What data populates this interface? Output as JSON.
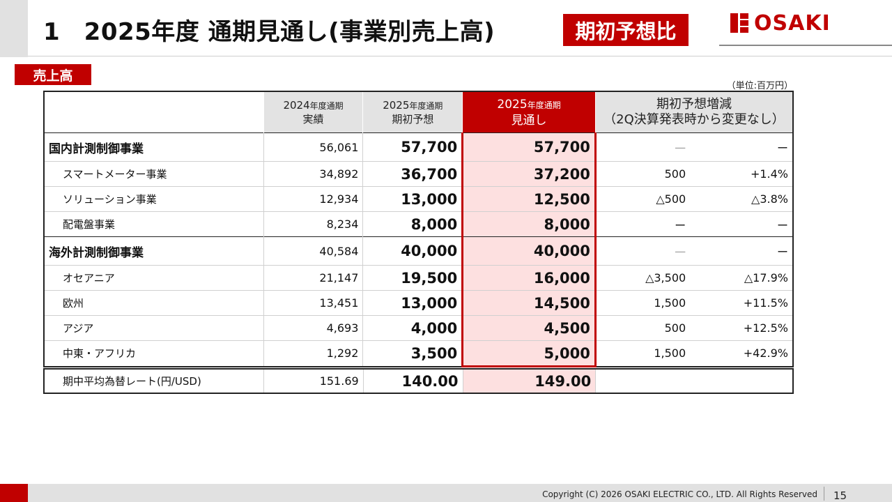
{
  "header": {
    "title": "1　2025年度 通期見通し(事業別売上高)",
    "badge": "期初予想比",
    "logo_text": "OSAKI"
  },
  "section": {
    "label": "売上高",
    "unit": "（単位:百万円）"
  },
  "table": {
    "columns": {
      "c2024": {
        "main": "2024",
        "small": "年度通期",
        "line2": "実績"
      },
      "c2025plan": {
        "main": "2025",
        "small": "年度通期",
        "line2": "期初予想"
      },
      "c2025fc": {
        "main": "2025",
        "small": "年度通期",
        "line2": "見通し"
      },
      "change": {
        "line1": "期初予想増減",
        "line2": "（2Q決算発表時から変更なし）"
      }
    },
    "rows": [
      {
        "label": "国内計測制御事業",
        "a2024": "56,061",
        "plan": "57,700",
        "forecast": "57,700",
        "diff": "—",
        "rate": "ー"
      },
      {
        "label": "スマートメーター事業",
        "a2024": "34,892",
        "plan": "36,700",
        "forecast": "37,200",
        "diff": "500",
        "rate": "+1.4%"
      },
      {
        "label": "ソリューション事業",
        "a2024": "12,934",
        "plan": "13,000",
        "forecast": "12,500",
        "diff": "△500",
        "rate": "△3.8%"
      },
      {
        "label": "配電盤事業",
        "a2024": "8,234",
        "plan": "8,000",
        "forecast": "8,000",
        "diff": "ー",
        "rate": "ー"
      },
      {
        "label": "海外計測制御事業",
        "a2024": "40,584",
        "plan": "40,000",
        "forecast": "40,000",
        "diff": "—",
        "rate": "ー"
      },
      {
        "label": "オセアニア",
        "a2024": "21,147",
        "plan": "19,500",
        "forecast": "16,000",
        "diff": "△3,500",
        "rate": "△17.9%"
      },
      {
        "label": "欧州",
        "a2024": "13,451",
        "plan": "13,000",
        "forecast": "14,500",
        "diff": "1,500",
        "rate": "+11.5%"
      },
      {
        "label": "アジア",
        "a2024": "4,693",
        "plan": "4,000",
        "forecast": "4,500",
        "diff": "500",
        "rate": "+12.5%"
      },
      {
        "label": "中東・アフリカ",
        "a2024": "1,292",
        "plan": "3,500",
        "forecast": "5,000",
        "diff": "1,500",
        "rate": "+42.9%"
      }
    ],
    "fx": {
      "label": "期中平均為替レート(円/USD)",
      "a2024": "151.69",
      "plan": "140.00",
      "forecast": "149.00"
    }
  },
  "footer": {
    "copyright": "Copyright (C) 2026 OSAKI ELECTRIC CO., LTD. All Rights Reserved",
    "page": "15"
  }
}
